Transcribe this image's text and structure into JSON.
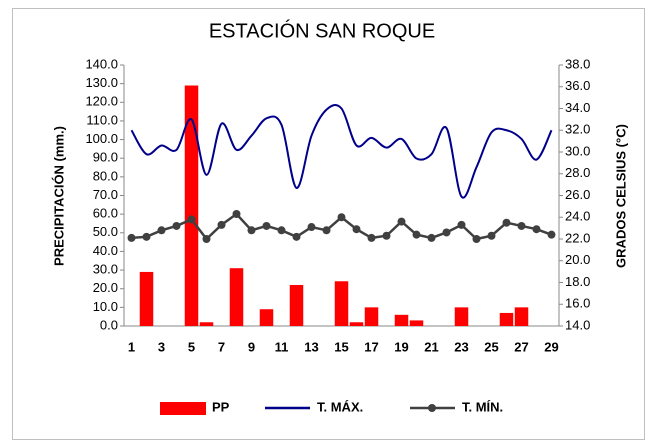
{
  "chart_data": {
    "type": "bar-line",
    "title": "ESTACIÓN SAN ROQUE",
    "ylabel": "PRECIPITACIÓN (mm.)",
    "y2label": "GRADOS CELSIUS (°C)",
    "categories": [
      "1",
      null,
      "3",
      null,
      "5",
      null,
      "7",
      null,
      "9",
      null,
      "11",
      null,
      "13",
      null,
      "15",
      null,
      "17",
      null,
      "19",
      null,
      "21",
      null,
      "23",
      null,
      "25",
      null,
      "27",
      null,
      "29"
    ],
    "series": [
      {
        "name": "PP",
        "type": "bar",
        "color": "#ff0000",
        "values": [
          0,
          29,
          0,
          0,
          129,
          2,
          0,
          31,
          0,
          9,
          0,
          22,
          0,
          0,
          24,
          2,
          10,
          0,
          6,
          3,
          0,
          0,
          10,
          0,
          0,
          7,
          10,
          0,
          0
        ]
      },
      {
        "name": "T. MÁX.",
        "type": "line",
        "axis": "y2",
        "color": "#00008b",
        "values": [
          32.0,
          29.8,
          30.6,
          30.2,
          33.0,
          27.9,
          32.6,
          30.2,
          31.5,
          33.1,
          32.5,
          26.7,
          31.5,
          33.9,
          34.0,
          30.6,
          31.3,
          30.4,
          31.2,
          29.4,
          29.8,
          32.2,
          25.9,
          28.6,
          31.8,
          32.0,
          31.2,
          29.3,
          32.0
        ]
      },
      {
        "name": "T. MÍN.",
        "type": "line",
        "axis": "y2",
        "color": "#404040",
        "marker": true,
        "values": [
          22.1,
          22.2,
          22.8,
          23.2,
          23.8,
          22.0,
          23.3,
          24.3,
          22.8,
          23.2,
          22.8,
          22.2,
          23.1,
          22.8,
          24.0,
          22.9,
          22.1,
          22.3,
          23.6,
          22.4,
          22.1,
          22.6,
          23.3,
          22.0,
          22.3,
          23.5,
          23.2,
          22.9,
          22.4
        ]
      }
    ],
    "ylim": [
      0,
      140
    ],
    "yticks": [
      {
        "value": 0,
        "label": "0.0"
      },
      {
        "value": 10,
        "label": "10.0"
      },
      {
        "value": 20,
        "label": "20.0"
      },
      {
        "value": 30,
        "label": "30.0"
      },
      {
        "value": 40,
        "label": "40.0"
      },
      {
        "value": 50,
        "label": "50.0"
      },
      {
        "value": 60,
        "label": "60.0"
      },
      {
        "value": 70,
        "label": "70.0"
      },
      {
        "value": 80,
        "label": "80.0"
      },
      {
        "value": 90,
        "label": "90.0"
      },
      {
        "value": 100,
        "label": "100.0"
      },
      {
        "value": 110,
        "label": "110.0"
      },
      {
        "value": 120,
        "label": "120.0"
      },
      {
        "value": 130,
        "label": "130.0"
      },
      {
        "value": 140,
        "label": "140.0"
      }
    ],
    "y2lim": [
      14,
      38
    ],
    "y2ticks": [
      {
        "value": 14,
        "label": "14.0"
      },
      {
        "value": 16,
        "label": "16.0"
      },
      {
        "value": 18,
        "label": "18.0"
      },
      {
        "value": 20,
        "label": "20.0"
      },
      {
        "value": 22,
        "label": "22.0"
      },
      {
        "value": 24,
        "label": "24.0"
      },
      {
        "value": 26,
        "label": "26.0"
      },
      {
        "value": 28,
        "label": "28.0"
      },
      {
        "value": 30,
        "label": "30.0"
      },
      {
        "value": 32,
        "label": "32.0"
      },
      {
        "value": 34,
        "label": "34.0"
      },
      {
        "value": 36,
        "label": "36.0"
      },
      {
        "value": 38,
        "label": "38.0"
      }
    ],
    "legend": "bottom"
  }
}
